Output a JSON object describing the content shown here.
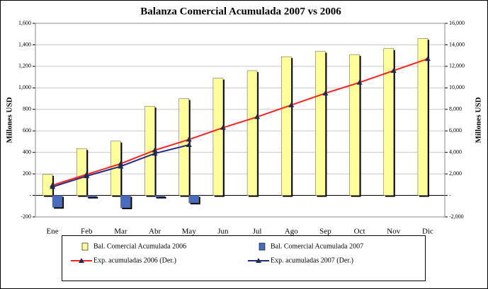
{
  "chart_data": {
    "type": "bar-line",
    "title": "Balanza Comercial Acumulada 2007 vs 2006",
    "y_label": "Millones USD",
    "y2_label": "Millones USD",
    "categories": [
      "Ene",
      "Feb",
      "Mar",
      "Abr",
      "May",
      "Jun",
      "Jul",
      "Ago",
      "Sep",
      "Oct",
      "Nov",
      "Dic"
    ],
    "ylim": [
      -200,
      1600
    ],
    "yticks": [
      -200,
      {
        "value": 0,
        "label": "-"
      },
      200,
      400,
      600,
      800,
      {
        "value": 1000,
        "label": "1,000"
      },
      {
        "value": 1200,
        "label": "1,200"
      },
      {
        "value": 1400,
        "label": "1,400"
      },
      {
        "value": 1600,
        "label": "1,600"
      }
    ],
    "y2lim": [
      -2000,
      16000
    ],
    "y2ticks": [
      {
        "value": -2000,
        "label": "-2,000"
      },
      {
        "value": 0,
        "label": "-"
      },
      {
        "value": 2000,
        "label": "2,000"
      },
      {
        "value": 4000,
        "label": "4,000"
      },
      {
        "value": 6000,
        "label": "6,000"
      },
      {
        "value": 8000,
        "label": "8,000"
      },
      {
        "value": 10000,
        "label": "10,000"
      },
      {
        "value": 12000,
        "label": "12,000"
      },
      {
        "value": 14000,
        "label": "14,000"
      },
      {
        "value": 16000,
        "label": "16,000"
      }
    ],
    "grid": true,
    "legend": "bottom",
    "series": [
      {
        "name": "Bal. Comercial Acumulada 2006",
        "type": "bar",
        "color": "#ffff99",
        "values": [
          195,
          435,
          505,
          830,
          900,
          1090,
          1160,
          1290,
          1340,
          1310,
          1365,
          1460
        ]
      },
      {
        "name": "Bal. Comercial Acumulada 2007",
        "type": "bar",
        "color": "#4a6cc0",
        "values": [
          -110,
          -15,
          -115,
          -15,
          -70,
          null,
          null,
          null,
          null,
          null,
          null,
          null
        ]
      },
      {
        "name": "Exp. acumuladas 2006 (Der.)",
        "type": "line",
        "axis": "y2",
        "color": "#ff2020",
        "values": [
          950,
          1950,
          2950,
          4200,
          5200,
          6300,
          7300,
          8400,
          9500,
          10500,
          11600,
          12700
        ]
      },
      {
        "name": "Exp. acumuladas 2007 (Der.)",
        "type": "line",
        "axis": "y2",
        "color": "#1f2a80",
        "values": [
          800,
          1800,
          2700,
          3900,
          4700,
          null,
          null,
          null,
          null,
          null,
          null,
          null
        ]
      }
    ]
  }
}
